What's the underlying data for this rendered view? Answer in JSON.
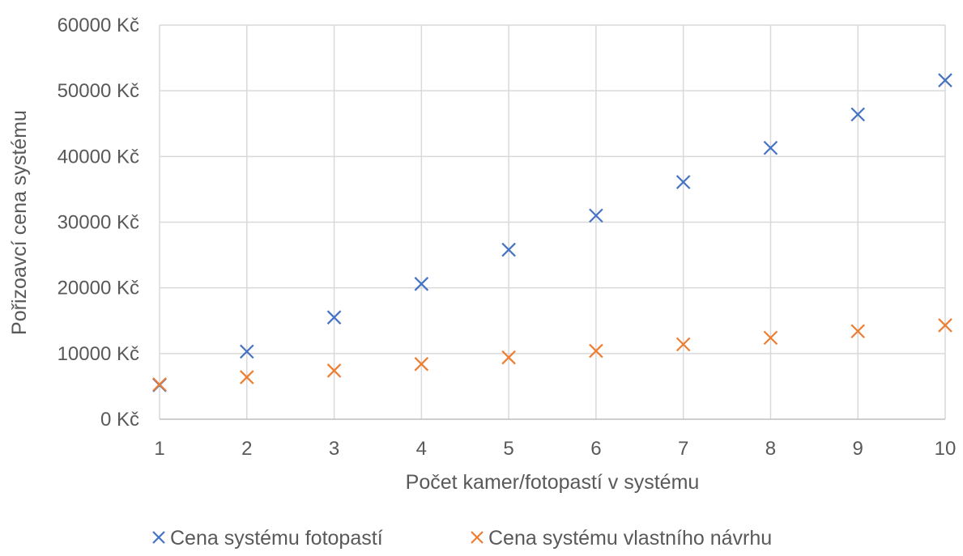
{
  "chart_data": {
    "type": "scatter",
    "title": "",
    "xlabel": "Počet kamer/fotopastí v systému",
    "ylabel": "Pořizoavcí cena systému",
    "x": [
      1,
      2,
      3,
      4,
      5,
      6,
      7,
      8,
      9,
      10
    ],
    "x_ticks": [
      "1",
      "2",
      "3",
      "4",
      "5",
      "6",
      "7",
      "8",
      "9",
      "10"
    ],
    "xlim": [
      1,
      10
    ],
    "ylim": [
      0,
      60000
    ],
    "y_ticks": [
      0,
      10000,
      20000,
      30000,
      40000,
      50000,
      60000
    ],
    "y_tick_labels": [
      "0 Kč",
      "10000 Kč",
      "20000 Kč",
      "30000 Kč",
      "40000 Kč",
      "50000 Kč",
      "60000 Kč"
    ],
    "grid": true,
    "legend_position": "bottom",
    "marker": "x",
    "series": [
      {
        "name": "Cena systému fotopastí",
        "color": "#4472C4",
        "values": [
          5200,
          10300,
          15500,
          20600,
          25800,
          31000,
          36100,
          41300,
          46400,
          51600
        ]
      },
      {
        "name": "Cena systému vlastního návrhu",
        "color": "#ED7D31",
        "values": [
          5300,
          6400,
          7400,
          8400,
          9400,
          10400,
          11400,
          12400,
          13400,
          14300
        ]
      }
    ]
  }
}
